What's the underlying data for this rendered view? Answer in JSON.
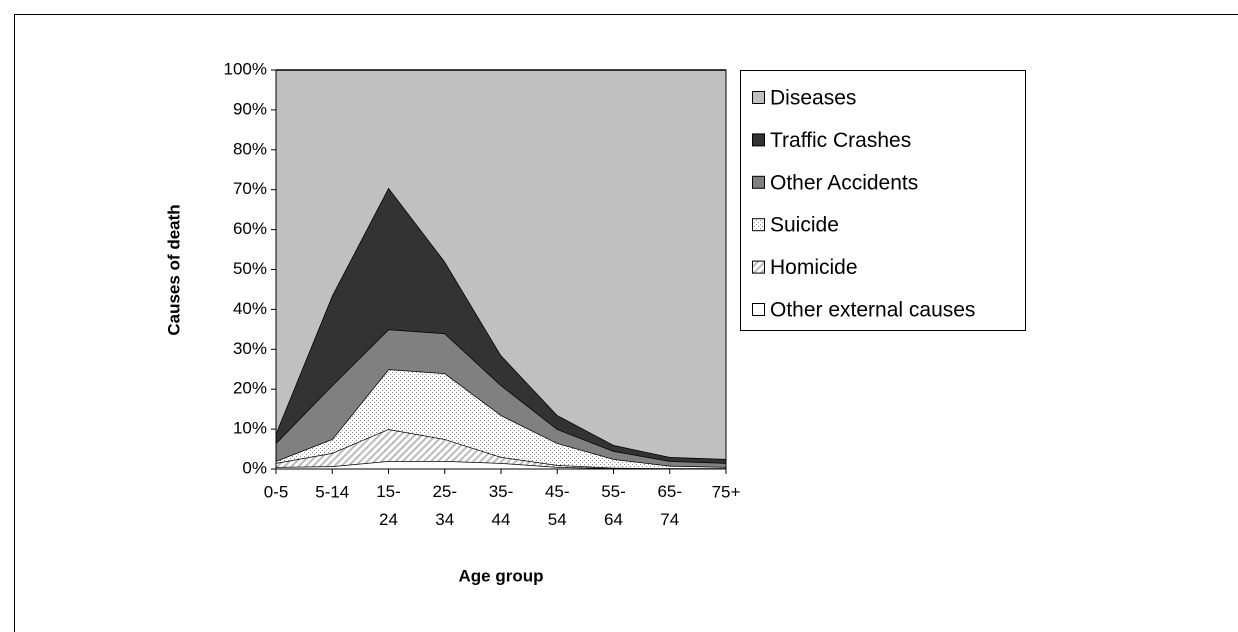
{
  "chart_data": {
    "type": "stacked_area_100",
    "x_label": "Age group",
    "y_label": "Causes of death",
    "categories": [
      "0-5",
      "5-14",
      "15-24",
      "25-34",
      "35-44",
      "45-54",
      "55-64",
      "65-74",
      "75+"
    ],
    "series": [
      {
        "name": "Other external causes",
        "color": "#ffffff",
        "pattern": "none",
        "values": [
          0.5,
          0.7,
          2,
          2,
          1.5,
          0.5,
          0.2,
          0.1,
          0.1
        ]
      },
      {
        "name": "Homicide",
        "color": "#ffffff",
        "pattern": "hatch",
        "values": [
          1,
          3.3,
          8,
          5.5,
          1.5,
          0.5,
          0.1,
          0.1,
          0.1
        ]
      },
      {
        "name": "Suicide",
        "color": "#ffffff",
        "pattern": "dots",
        "values": [
          0.5,
          3.5,
          15,
          16.5,
          10.5,
          5.5,
          2.2,
          0.6,
          0.3
        ]
      },
      {
        "name": "Other Accidents",
        "color": "#808080",
        "pattern": "none",
        "values": [
          4.5,
          13.5,
          10,
          10,
          7.5,
          3.5,
          2,
          1.2,
          1
        ]
      },
      {
        "name": "Traffic Crashes",
        "color": "#333333",
        "pattern": "none",
        "values": [
          2.5,
          22.5,
          35.5,
          18,
          7.5,
          3.5,
          1.5,
          1,
          1
        ]
      },
      {
        "name": "Diseases",
        "color": "#c0c0c0",
        "pattern": "none",
        "values": [
          91,
          56.5,
          29.5,
          48,
          71.5,
          86.5,
          94,
          97,
          97.5
        ]
      }
    ],
    "ylim": [
      0,
      100
    ],
    "yticks": [
      {
        "value": 0,
        "label": "0%"
      },
      {
        "value": 10,
        "label": "10%"
      },
      {
        "value": 20,
        "label": "20%"
      },
      {
        "value": 30,
        "label": "30%"
      },
      {
        "value": 40,
        "label": "40%"
      },
      {
        "value": 50,
        "label": "50%"
      },
      {
        "value": 60,
        "label": "60%"
      },
      {
        "value": 70,
        "label": "70%"
      },
      {
        "value": 80,
        "label": "80%"
      },
      {
        "value": 90,
        "label": "90%"
      },
      {
        "value": 100,
        "label": "100%"
      }
    ],
    "legend": "right"
  }
}
